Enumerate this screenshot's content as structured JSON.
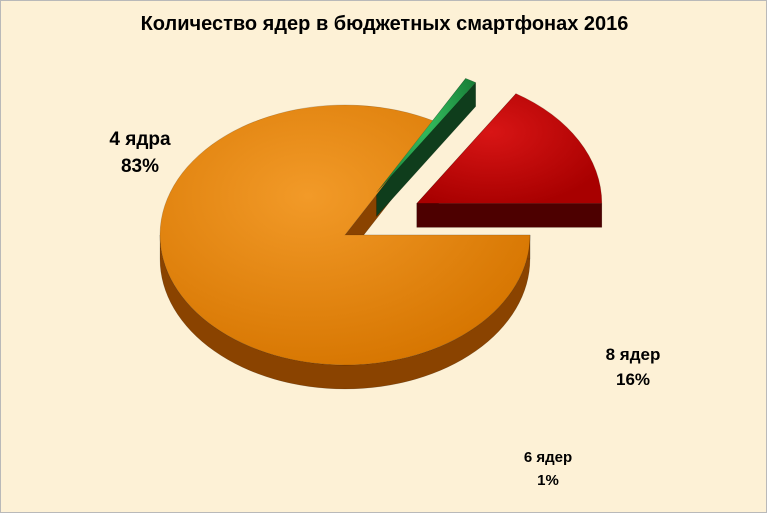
{
  "chart_data": {
    "type": "pie",
    "title": "Количество ядер в бюджетных смартфонах 2016",
    "slices": [
      {
        "label": "4 ядра",
        "value": 83,
        "value_label": "83%",
        "color": "#e07f00",
        "side_color": "#8a4300"
      },
      {
        "label": "6 ядер",
        "value": 1,
        "value_label": "1%",
        "color": "#1e8a3a",
        "side_color": "#0f3d1c"
      },
      {
        "label": "8 ядер",
        "value": 16,
        "value_label": "16%",
        "color": "#c00000",
        "side_color": "#4d0000"
      }
    ],
    "exploded": [
      "6 ядер",
      "8 ядер"
    ],
    "style": "3d"
  }
}
